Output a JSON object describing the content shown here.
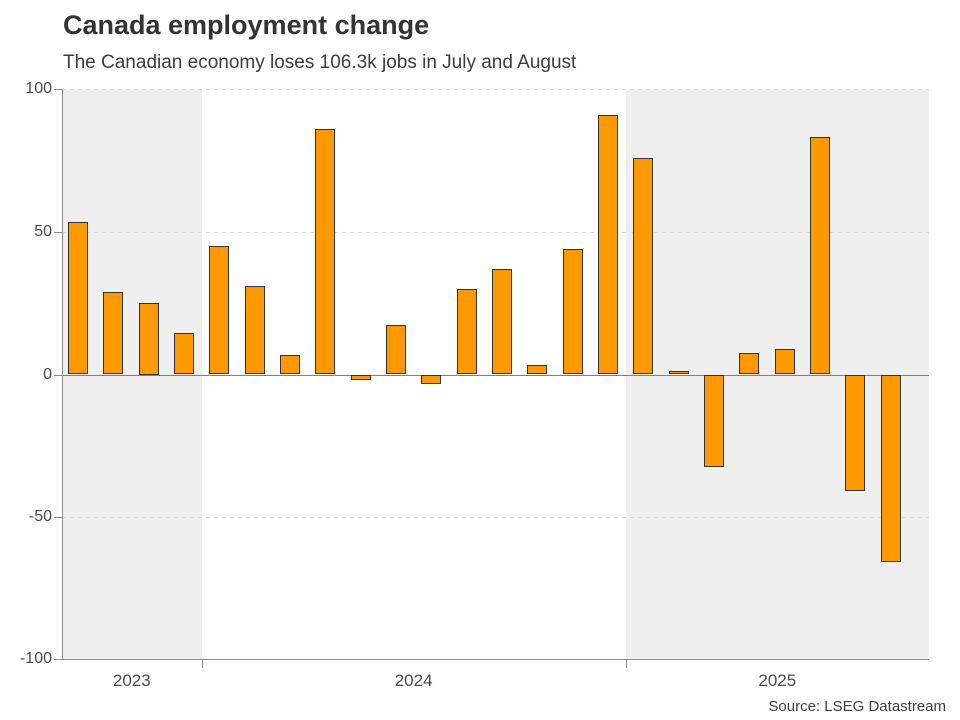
{
  "chart_data": {
    "type": "bar",
    "title": "Canada employment change",
    "subtitle": "The Canadian economy loses 106.3k jobs in July and August",
    "source": "Source: LSEG Datastream",
    "ylim": [
      -100,
      100
    ],
    "ytick_values": [
      100,
      50,
      0,
      -50,
      -100
    ],
    "ytick_labels": [
      "100",
      "50",
      "0",
      "-50",
      "-100"
    ],
    "grid": "horizontal dashed gridlines at 100, 50, -50; solid zero line; alternating year bands shaded",
    "legend_position": "none",
    "year_groups": [
      {
        "label": "2023",
        "shaded": true,
        "values": [
          53.5,
          29,
          25,
          14.5
        ]
      },
      {
        "label": "2024",
        "shaded": false,
        "values": [
          45,
          31,
          7,
          86,
          -2,
          17.5,
          -3.5,
          30,
          37,
          3.5,
          44,
          91
        ]
      },
      {
        "label": "2025",
        "shaded": true,
        "values": [
          76,
          1.2,
          -32.5,
          7.5,
          9,
          83.1,
          -40.8,
          -65.5
        ]
      }
    ],
    "colors": {
      "bar_fill": "#FF9900",
      "bar_border": "#333333",
      "band_shade": "#EFEFEF",
      "gridline": "#D9D9D9",
      "axis": "#8C8C8C",
      "zero_line": "#7F7F7F",
      "text": "#4A4A4A"
    }
  }
}
